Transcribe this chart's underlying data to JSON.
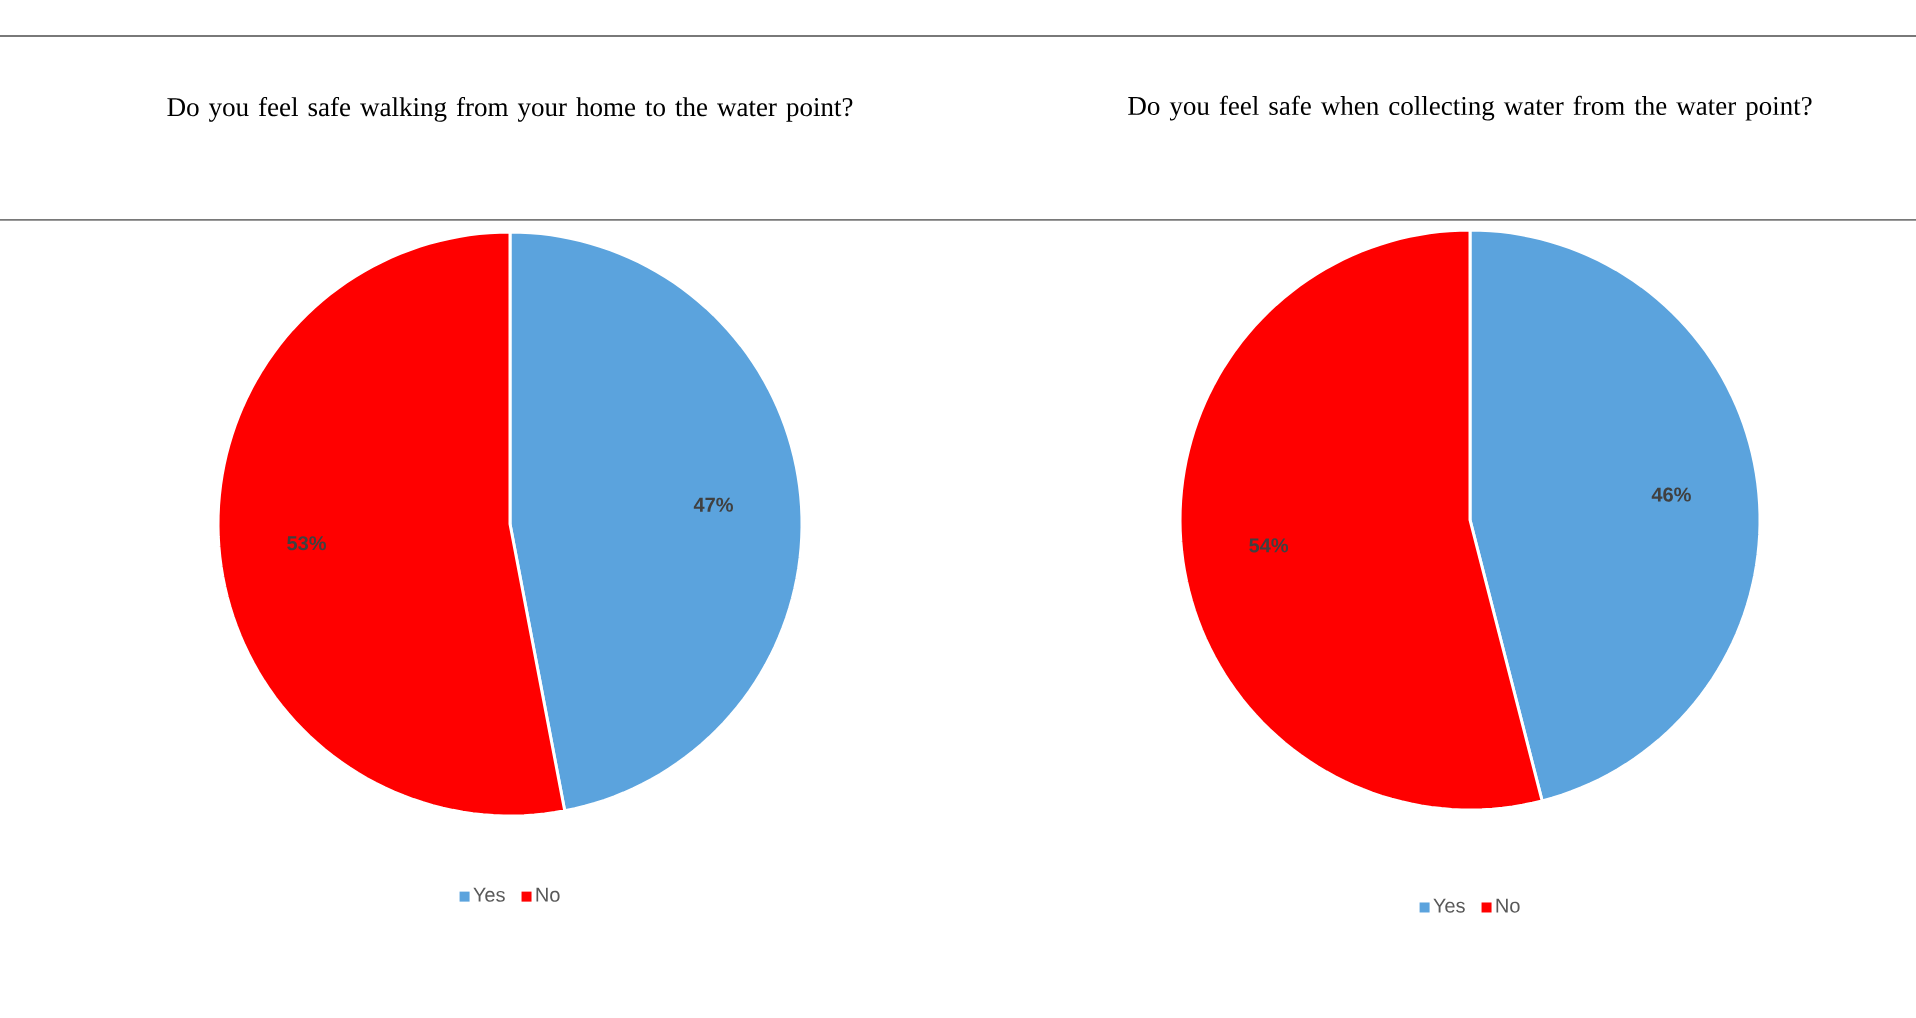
{
  "chart_data": [
    {
      "type": "pie",
      "title": "Do you feel safe walking from your home to the water point?",
      "categories": [
        "Yes",
        "No"
      ],
      "values": [
        47,
        53
      ],
      "colors": [
        "#5ba3dd",
        "#ff0000"
      ],
      "value_labels": [
        "47%",
        "53%"
      ],
      "legend": "bottom"
    },
    {
      "type": "pie",
      "title": "Do you feel safe when collecting water from the water point?",
      "categories": [
        "Yes",
        "No"
      ],
      "values": [
        46,
        54
      ],
      "colors": [
        "#5ba3dd",
        "#ff0000"
      ],
      "value_labels": [
        "46%",
        "54%"
      ],
      "legend": "bottom"
    }
  ]
}
